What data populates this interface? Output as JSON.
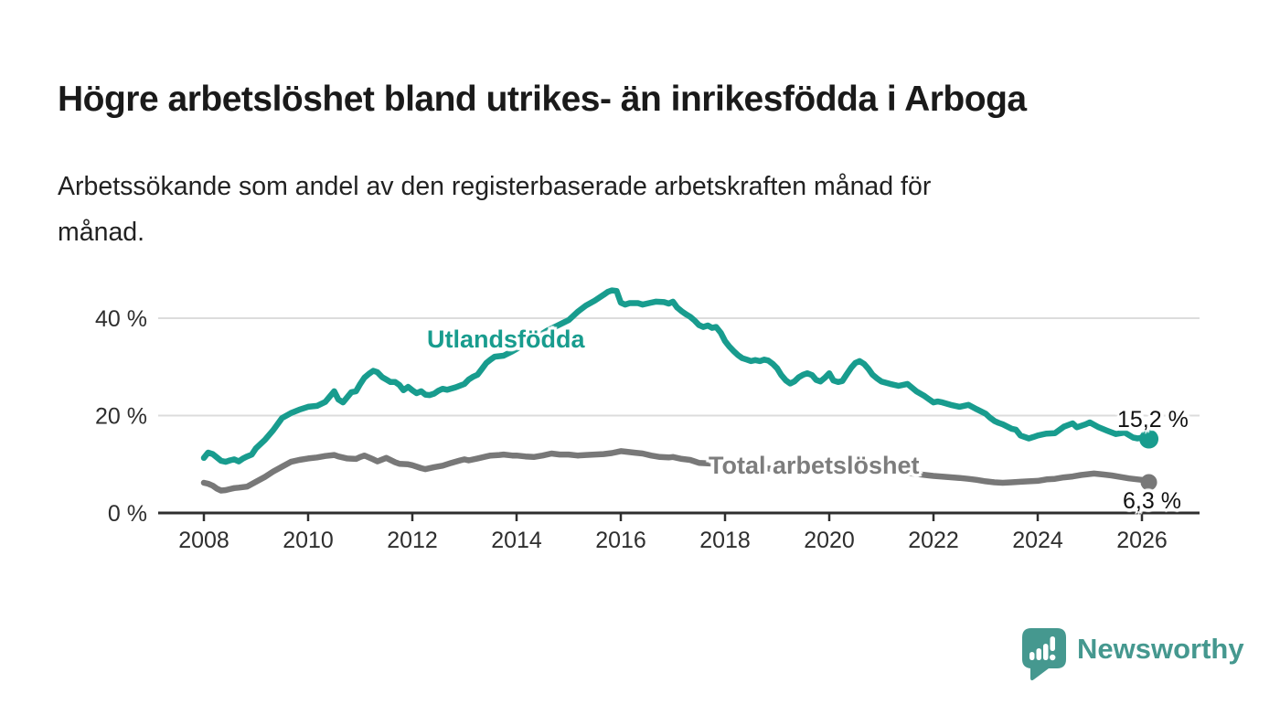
{
  "header": {
    "title": "Högre arbetslöshet bland utrikes- än inrikesfödda i Arboga",
    "subtitle_lines": [
      "Arbetssökande som andel av den registerbaserade arbetskraften månad för",
      "månad."
    ]
  },
  "footer": {
    "brand": "Newsworthy",
    "logo_icon": "newsworthy-speech-bubble-bar-chart"
  },
  "colors": {
    "accent_teal": "#189c8e",
    "series_gray": "#787878",
    "series_gray_label": "#7d7d7d",
    "title_text": "#1a1a1a",
    "axis_text": "#2e2e2e",
    "axis_line": "#2e2e2e",
    "gridline": "#dcdcdc",
    "value_label_text": "#111111",
    "logo_teal": "#45988f"
  },
  "chart_data": {
    "type": "line",
    "title": "Högre arbetslöshet bland utrikes- än inrikesfödda i Arboga",
    "subtitle": "Arbetssökande som andel av den registerbaserade arbetskraften månad för månad.",
    "unit": "%",
    "grid": "horizontal",
    "legend_position": "inline-labels",
    "xlim": [
      2007.12,
      2027.11
    ],
    "ylim": [
      0,
      48
    ],
    "x_axis": {
      "tick_values": [
        2008,
        2010,
        2012,
        2014,
        2016,
        2018,
        2020,
        2022,
        2024,
        2026
      ],
      "tick_labels": [
        "2008",
        "2010",
        "2012",
        "2014",
        "2016",
        "2018",
        "2020",
        "2022",
        "2024",
        "2026"
      ]
    },
    "y_axis": {
      "tick_values": [
        0,
        20,
        40
      ],
      "tick_labels": [
        "0 %",
        "20 %",
        "40 %"
      ]
    },
    "series": [
      {
        "name": "Utlandsfödda",
        "label_text": "Utlandsfödda",
        "end_label": "15,2 %",
        "end_value": 15.2,
        "color": "#189c8e",
        "x": [
          2008.0,
          2008.08,
          2008.17,
          2008.25,
          2008.33,
          2008.42,
          2008.5,
          2008.58,
          2008.67,
          2008.75,
          2008.83,
          2008.92,
          2009.0,
          2009.17,
          2009.33,
          2009.5,
          2009.67,
          2009.83,
          2010.0,
          2010.17,
          2010.33,
          2010.5,
          2010.58,
          2010.67,
          2010.83,
          2010.92,
          2011.0,
          2011.08,
          2011.17,
          2011.25,
          2011.33,
          2011.42,
          2011.5,
          2011.58,
          2011.67,
          2011.75,
          2011.83,
          2011.92,
          2012.0,
          2012.08,
          2012.17,
          2012.25,
          2012.33,
          2012.42,
          2012.5,
          2012.58,
          2012.67,
          2012.83,
          2013.0,
          2013.08,
          2013.17,
          2013.25,
          2013.33,
          2013.42,
          2013.5,
          2013.58,
          2013.75,
          2013.92,
          2014.08,
          2014.25,
          2014.42,
          2014.58,
          2014.75,
          2014.92,
          2015.0,
          2015.17,
          2015.33,
          2015.5,
          2015.67,
          2015.75,
          2015.83,
          2015.92,
          2016.0,
          2016.08,
          2016.17,
          2016.33,
          2016.42,
          2016.58,
          2016.67,
          2016.83,
          2016.92,
          2017.0,
          2017.08,
          2017.17,
          2017.25,
          2017.33,
          2017.42,
          2017.5,
          2017.58,
          2017.67,
          2017.75,
          2017.83,
          2017.92,
          2018.0,
          2018.08,
          2018.17,
          2018.25,
          2018.33,
          2018.42,
          2018.5,
          2018.58,
          2018.67,
          2018.75,
          2018.83,
          2018.92,
          2019.0,
          2019.08,
          2019.17,
          2019.25,
          2019.33,
          2019.42,
          2019.5,
          2019.58,
          2019.67,
          2019.75,
          2019.83,
          2019.92,
          2020.0,
          2020.08,
          2020.17,
          2020.25,
          2020.33,
          2020.42,
          2020.5,
          2020.58,
          2020.67,
          2020.75,
          2020.83,
          2020.92,
          2021.0,
          2021.17,
          2021.33,
          2021.5,
          2021.67,
          2021.83,
          2021.92,
          2022.0,
          2022.08,
          2022.17,
          2022.33,
          2022.5,
          2022.67,
          2022.83,
          2023.0,
          2023.08,
          2023.17,
          2023.25,
          2023.33,
          2023.5,
          2023.58,
          2023.67,
          2023.83,
          2023.92,
          2024.0,
          2024.17,
          2024.33,
          2024.5,
          2024.67,
          2024.75,
          2024.92,
          2025.0,
          2025.17,
          2025.33,
          2025.5,
          2025.67,
          2025.83,
          2025.92,
          2026.0,
          2026.08
        ],
        "values": [
          11.3,
          12.4,
          12.1,
          11.4,
          10.7,
          10.5,
          10.8,
          11.0,
          10.6,
          11.2,
          11.6,
          12.0,
          13.3,
          15.0,
          17.0,
          19.5,
          20.5,
          21.2,
          21.8,
          22.0,
          22.8,
          25.0,
          23.3,
          22.7,
          24.8,
          25.0,
          26.5,
          27.8,
          28.6,
          29.2,
          28.9,
          27.9,
          27.4,
          26.9,
          26.9,
          26.3,
          25.2,
          25.9,
          25.2,
          24.6,
          25.0,
          24.3,
          24.2,
          24.5,
          25.1,
          25.5,
          25.3,
          25.8,
          26.5,
          27.4,
          28.0,
          28.4,
          29.5,
          30.8,
          31.5,
          32.1,
          32.3,
          33.2,
          34.2,
          35.2,
          36.3,
          37.4,
          38.3,
          39.2,
          39.6,
          41.3,
          42.6,
          43.6,
          44.8,
          45.4,
          45.7,
          45.6,
          43.2,
          42.8,
          43.1,
          43.1,
          42.8,
          43.2,
          43.4,
          43.3,
          43.0,
          43.4,
          42.2,
          41.4,
          40.8,
          40.3,
          39.5,
          38.6,
          38.2,
          38.5,
          38.0,
          38.2,
          37.0,
          35.3,
          34.2,
          33.2,
          32.4,
          31.8,
          31.5,
          31.2,
          31.4,
          31.2,
          31.5,
          31.3,
          30.6,
          29.7,
          28.3,
          27.2,
          26.6,
          27.0,
          27.9,
          28.4,
          28.7,
          28.3,
          27.3,
          27.0,
          27.8,
          28.7,
          27.2,
          26.9,
          27.1,
          28.4,
          29.8,
          30.8,
          31.2,
          30.6,
          29.6,
          28.4,
          27.6,
          27.0,
          26.5,
          26.1,
          26.5,
          25.0,
          24.0,
          23.3,
          22.7,
          22.9,
          22.7,
          22.2,
          21.8,
          22.2,
          21.3,
          20.4,
          19.6,
          18.9,
          18.5,
          18.2,
          17.3,
          17.1,
          15.9,
          15.3,
          15.6,
          15.9,
          16.3,
          16.4,
          17.7,
          18.4,
          17.6,
          18.2,
          18.6,
          17.6,
          16.9,
          16.2,
          16.5,
          15.5,
          15.3,
          15.5,
          15.2
        ]
      },
      {
        "name": "Total arbetslöshet",
        "label_text": "Total arbetslöshet",
        "end_label": "6,3 %",
        "end_value": 6.3,
        "color": "#787878",
        "x": [
          2008.0,
          2008.08,
          2008.17,
          2008.25,
          2008.33,
          2008.42,
          2008.5,
          2008.58,
          2008.67,
          2008.83,
          2009.0,
          2009.17,
          2009.33,
          2009.5,
          2009.67,
          2009.83,
          2010.0,
          2010.17,
          2010.33,
          2010.5,
          2010.58,
          2010.75,
          2010.92,
          2011.0,
          2011.08,
          2011.25,
          2011.33,
          2011.5,
          2011.67,
          2011.75,
          2011.92,
          2012.0,
          2012.17,
          2012.25,
          2012.42,
          2012.58,
          2012.75,
          2012.92,
          2013.0,
          2013.08,
          2013.25,
          2013.42,
          2013.5,
          2013.67,
          2013.75,
          2013.92,
          2014.0,
          2014.17,
          2014.33,
          2014.5,
          2014.67,
          2014.83,
          2015.0,
          2015.17,
          2015.33,
          2015.5,
          2015.67,
          2015.83,
          2016.0,
          2016.08,
          2016.25,
          2016.42,
          2016.58,
          2016.75,
          2016.92,
          2017.0,
          2017.17,
          2017.33,
          2017.5,
          2017.67,
          2017.83,
          2018.0,
          2018.25,
          2018.5,
          2018.75,
          2019.0,
          2019.25,
          2019.5,
          2019.75,
          2020.0,
          2020.25,
          2020.5,
          2020.75,
          2021.0,
          2021.25,
          2021.5,
          2021.75,
          2022.0,
          2022.25,
          2022.5,
          2022.67,
          2022.83,
          2023.0,
          2023.17,
          2023.33,
          2023.5,
          2023.67,
          2023.83,
          2024.0,
          2024.17,
          2024.33,
          2024.5,
          2024.67,
          2024.83,
          2025.0,
          2025.08,
          2025.25,
          2025.42,
          2025.58,
          2025.75,
          2025.92,
          2026.0,
          2026.08
        ],
        "values": [
          6.2,
          6.0,
          5.6,
          5.0,
          4.6,
          4.7,
          4.9,
          5.1,
          5.2,
          5.4,
          6.4,
          7.4,
          8.5,
          9.5,
          10.5,
          10.9,
          11.2,
          11.4,
          11.7,
          11.9,
          11.6,
          11.2,
          11.1,
          11.5,
          11.8,
          11.0,
          10.6,
          11.3,
          10.4,
          10.1,
          10.0,
          9.8,
          9.2,
          9.0,
          9.4,
          9.7,
          10.3,
          10.8,
          11.0,
          10.8,
          11.2,
          11.6,
          11.8,
          11.9,
          12.0,
          11.8,
          11.8,
          11.6,
          11.5,
          11.8,
          12.2,
          12.0,
          12.0,
          11.8,
          11.9,
          12.0,
          12.1,
          12.3,
          12.7,
          12.6,
          12.4,
          12.2,
          11.8,
          11.5,
          11.4,
          11.5,
          11.1,
          10.9,
          10.3,
          10.2,
          10.1,
          9.8,
          9.6,
          9.4,
          9.2,
          9.0,
          8.8,
          8.7,
          8.6,
          8.6,
          8.8,
          9.2,
          9.0,
          8.8,
          8.5,
          8.2,
          7.9,
          7.6,
          7.4,
          7.2,
          7.0,
          6.8,
          6.5,
          6.3,
          6.2,
          6.3,
          6.4,
          6.5,
          6.6,
          6.9,
          7.0,
          7.3,
          7.5,
          7.8,
          8.0,
          8.1,
          7.9,
          7.7,
          7.4,
          7.1,
          6.9,
          6.8,
          6.3
        ]
      }
    ]
  }
}
